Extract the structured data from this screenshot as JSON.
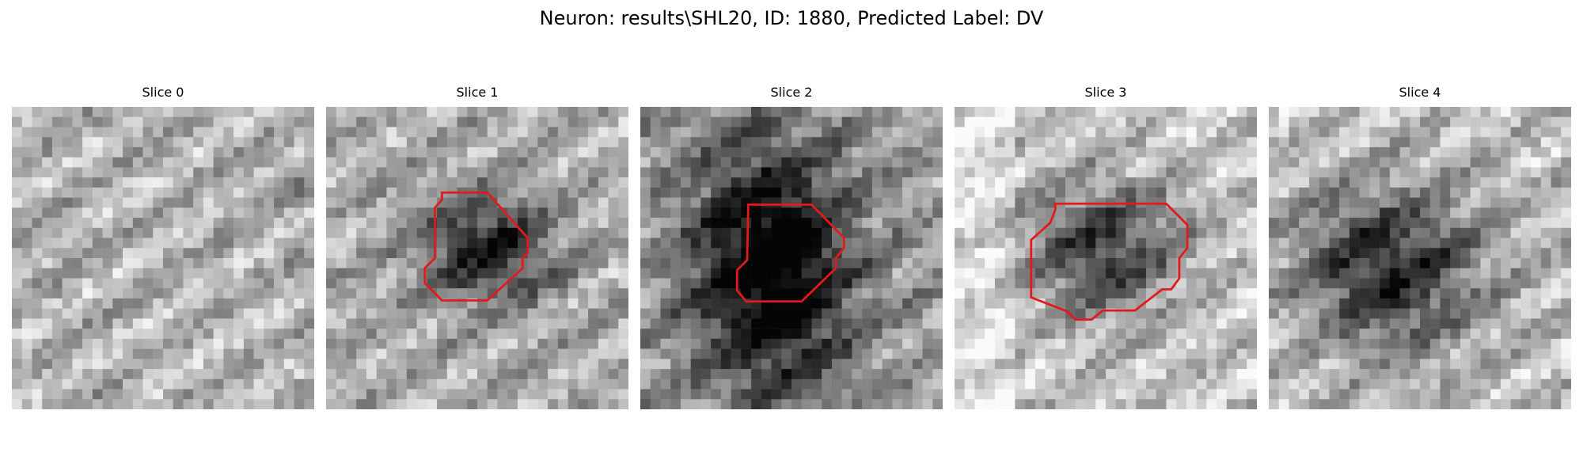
{
  "figure": {
    "title": "Neuron: results\\SHL20, ID: 1880, Predicted Label: DV"
  },
  "colors": {
    "contour": "#e31a1c",
    "background": "#ffffff"
  },
  "panels": [
    {
      "title": "Slice 0",
      "has_contour": false,
      "dark_center": 0.08,
      "base": 0.7
    },
    {
      "title": "Slice 1",
      "has_contour": true,
      "dark_center": 0.55,
      "base": 0.68
    },
    {
      "title": "Slice 2",
      "has_contour": true,
      "dark_center": 0.78,
      "base": 0.62
    },
    {
      "title": "Slice 3",
      "has_contour": true,
      "dark_center": 0.55,
      "base": 0.78
    },
    {
      "title": "Slice 4",
      "has_contour": false,
      "dark_center": 0.62,
      "base": 0.75
    }
  ]
}
